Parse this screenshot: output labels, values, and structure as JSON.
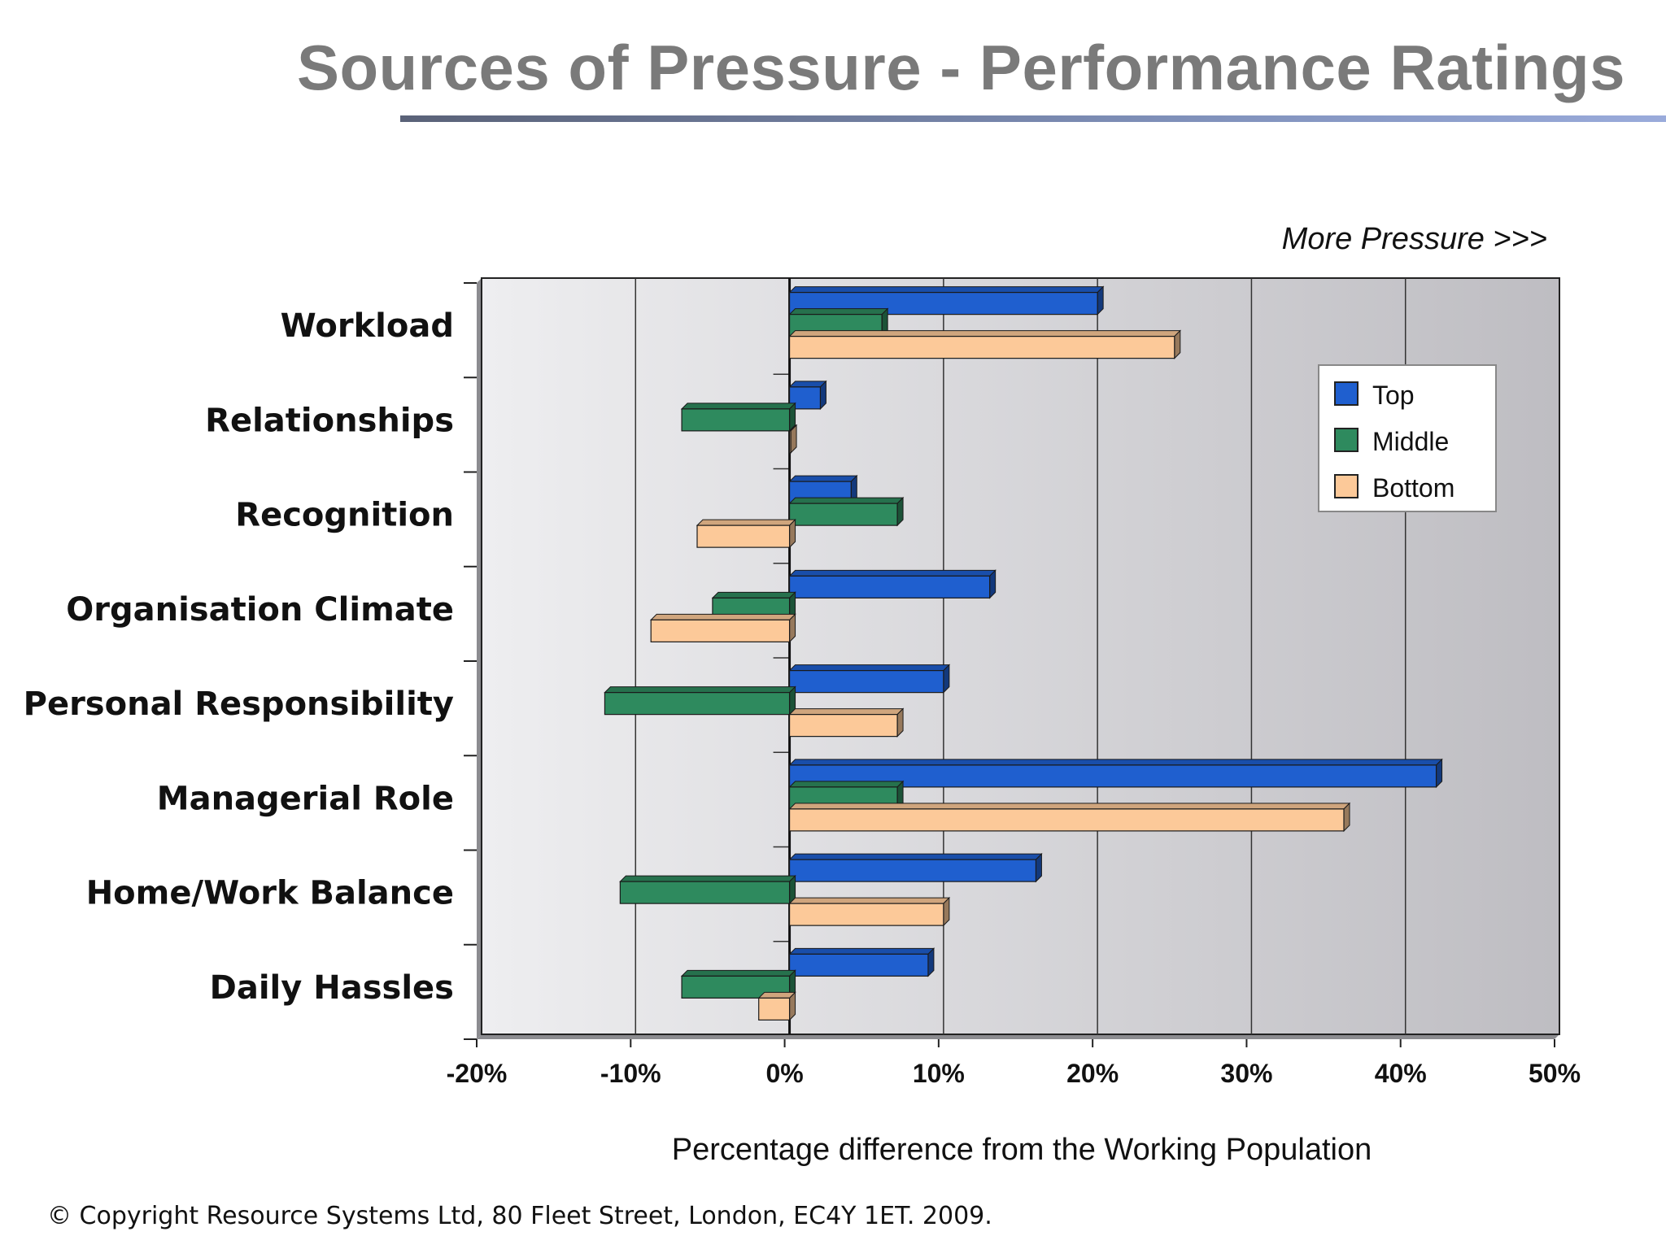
{
  "slide": {
    "title": "Sources of Pressure - Performance Ratings",
    "footer": "© Copyright Resource Systems Ltd, 80 Fleet Street, London, EC4Y 1ET. 2009."
  },
  "chart_data": {
    "type": "bar",
    "orientation": "horizontal",
    "annotation": "More Pressure >>>",
    "xlabel": "Percentage difference from the Working Population",
    "ylabel": "",
    "xlim": [
      -20,
      50
    ],
    "x_ticks": [
      -20,
      -10,
      0,
      10,
      20,
      30,
      40,
      50
    ],
    "tick_suffix": "%",
    "grid": true,
    "legend_position": "right",
    "categories": [
      "Workload",
      "Relationships",
      "Recognition",
      "Organisation Climate",
      "Personal Responsibility",
      "Managerial Role",
      "Home/Work Balance",
      "Daily Hassles"
    ],
    "series": [
      {
        "name": "Top",
        "color": "#1f5fcf",
        "values": [
          20,
          2,
          4,
          13,
          10,
          42,
          16,
          9
        ]
      },
      {
        "name": "Middle",
        "color": "#2e8a5e",
        "values": [
          6,
          -7,
          7,
          -5,
          -12,
          7,
          -11,
          -7
        ]
      },
      {
        "name": "Bottom",
        "color": "#fcc999",
        "values": [
          25,
          0,
          -6,
          -9,
          7,
          36,
          10,
          -2
        ]
      }
    ]
  }
}
